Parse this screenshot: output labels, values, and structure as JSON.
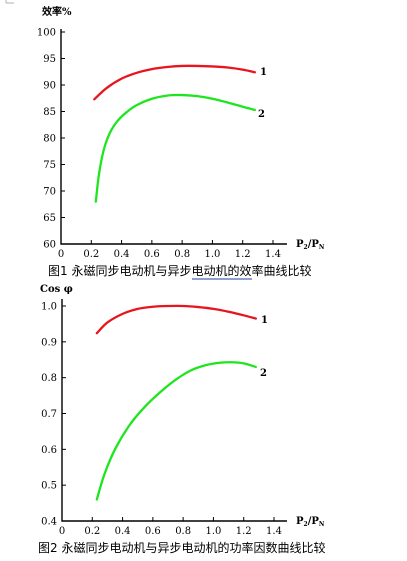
{
  "chart_data": [
    {
      "type": "line",
      "ylabel": "效率%",
      "xlabel_main": "P",
      "xlabel_sub1": "2",
      "xlabel_mid": "/P",
      "xlabel_sub2": "N",
      "caption_prefix": "图1 永磁同步电动机与",
      "caption_underlined": "异步电动机",
      "caption_suffix": "的效率曲线比较",
      "xlim": [
        0,
        1.4
      ],
      "ylim": [
        60,
        100
      ],
      "x_ticks": [
        "0",
        "0.2",
        "0.4",
        "0.6",
        "0.8",
        "1.0",
        "1.2",
        "1.4"
      ],
      "y_ticks": [
        "60",
        "65",
        "70",
        "75",
        "80",
        "85",
        "90",
        "95",
        "100"
      ],
      "series": [
        {
          "name": "1",
          "color": "#e8141e",
          "x": [
            0.22,
            0.3,
            0.4,
            0.5,
            0.6,
            0.7,
            0.8,
            0.9,
            1.0,
            1.1,
            1.2,
            1.28
          ],
          "y": [
            87.3,
            89.4,
            91.2,
            92.3,
            93.0,
            93.4,
            93.6,
            93.6,
            93.5,
            93.3,
            92.9,
            92.4
          ]
        },
        {
          "name": "2",
          "color": "#1ee61e",
          "x": [
            0.23,
            0.25,
            0.28,
            0.32,
            0.37,
            0.43,
            0.5,
            0.6,
            0.7,
            0.8,
            0.9,
            1.0,
            1.1,
            1.2,
            1.28
          ],
          "y": [
            68.0,
            73.0,
            77.5,
            80.8,
            83.1,
            84.8,
            86.2,
            87.4,
            88.0,
            88.1,
            87.9,
            87.4,
            86.7,
            85.9,
            85.3
          ]
        }
      ]
    },
    {
      "type": "line",
      "ylabel": "Cos φ",
      "xlabel_main": "P",
      "xlabel_sub1": "2",
      "xlabel_mid": "/P",
      "xlabel_sub2": "N",
      "caption": "图2 永磁同步电动机与异步电动机的功率因数曲线比较",
      "xlim": [
        0,
        1.4
      ],
      "ylim": [
        0.4,
        1.0
      ],
      "x_ticks": [
        "0",
        "0.2",
        "0.4",
        "0.6",
        "0.8",
        "1.0",
        "1.2",
        "1.4"
      ],
      "y_ticks": [
        "0.4",
        "0.5",
        "0.6",
        "0.7",
        "0.8",
        "0.9",
        "1.0"
      ],
      "series": [
        {
          "name": "1",
          "color": "#e8141e",
          "x": [
            0.23,
            0.3,
            0.4,
            0.5,
            0.6,
            0.7,
            0.8,
            0.9,
            1.0,
            1.1,
            1.2,
            1.28
          ],
          "y": [
            0.924,
            0.954,
            0.978,
            0.992,
            0.998,
            1.0,
            1.0,
            0.997,
            0.992,
            0.984,
            0.974,
            0.965
          ]
        },
        {
          "name": "2",
          "color": "#1ee61e",
          "x": [
            0.23,
            0.28,
            0.35,
            0.45,
            0.55,
            0.65,
            0.75,
            0.85,
            0.95,
            1.05,
            1.12,
            1.2,
            1.28
          ],
          "y": [
            0.46,
            0.53,
            0.6,
            0.67,
            0.72,
            0.76,
            0.794,
            0.82,
            0.835,
            0.842,
            0.843,
            0.84,
            0.83
          ]
        }
      ]
    }
  ]
}
